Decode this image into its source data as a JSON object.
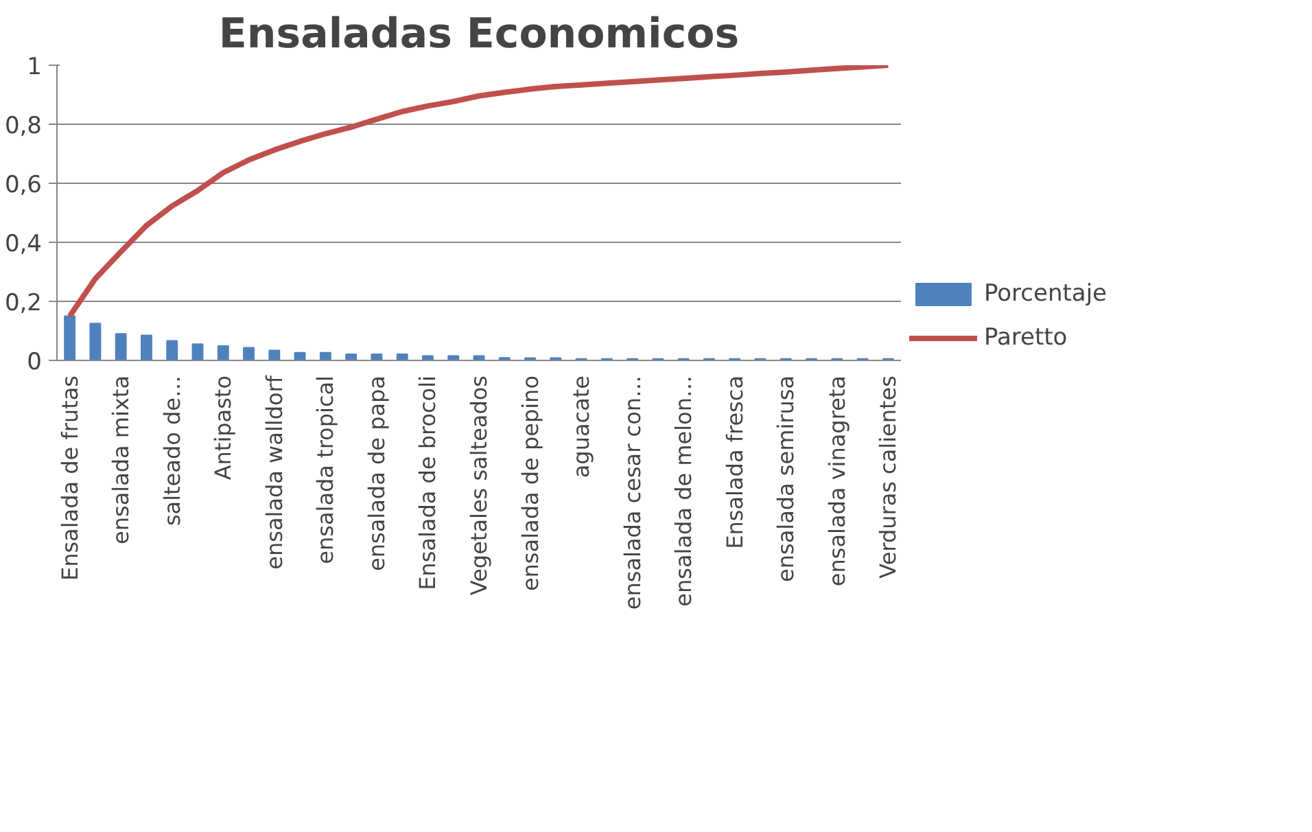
{
  "chart_data": {
    "type": "bar",
    "title": "Ensaladas Economicos",
    "categories": [
      "Ensalada de frutas",
      null,
      "ensalada mixta",
      null,
      "salteado de…",
      null,
      "Antipasto",
      null,
      "ensalada walldorf",
      null,
      "ensalada tropical",
      null,
      "ensalada de papa",
      null,
      "Ensalada de brocoli",
      null,
      "Vegetales salteados",
      null,
      "ensalada de pepino",
      null,
      "aguacate",
      null,
      "ensalada cesar con…",
      null,
      "ensalada de melon…",
      null,
      "Ensalada fresca",
      null,
      "ensalada semirusa",
      null,
      "ensalada vinagreta",
      null,
      "Verduras calientes"
    ],
    "series": [
      {
        "name": "Porcentaje",
        "color": "#4f81bd",
        "values": [
          0.15,
          0.125,
          0.09,
          0.085,
          0.066,
          0.055,
          0.049,
          0.043,
          0.034,
          0.026,
          0.026,
          0.021,
          0.021,
          0.021,
          0.015,
          0.015,
          0.015,
          0.009,
          0.008,
          0.008,
          0.005,
          0.005,
          0.005,
          0.005,
          0.005,
          0.005,
          0.005,
          0.005,
          0.005,
          0.005,
          0.005,
          0.005,
          0.005
        ]
      },
      {
        "name": "Paretto",
        "type": "line",
        "color": "#c0504d",
        "values": [
          0.15,
          0.277,
          0.368,
          0.457,
          0.523,
          0.575,
          0.636,
          0.679,
          0.713,
          0.742,
          0.768,
          0.79,
          0.817,
          0.843,
          0.862,
          0.877,
          0.896,
          0.908,
          0.919,
          0.928,
          0.933,
          0.939,
          0.944,
          0.95,
          0.955,
          0.961,
          0.966,
          0.972,
          0.977,
          0.983,
          0.989,
          0.994,
          1.0
        ]
      }
    ],
    "ylim": [
      0,
      1
    ],
    "yticks": [
      0,
      {
        "value": 0.2,
        "label": "0,2"
      },
      {
        "value": 0.4,
        "label": "0,4"
      },
      {
        "value": 0.6,
        "label": "0,6"
      },
      {
        "value": 0.8,
        "label": "0,8"
      },
      1
    ],
    "grid": "y",
    "legend": "right"
  }
}
